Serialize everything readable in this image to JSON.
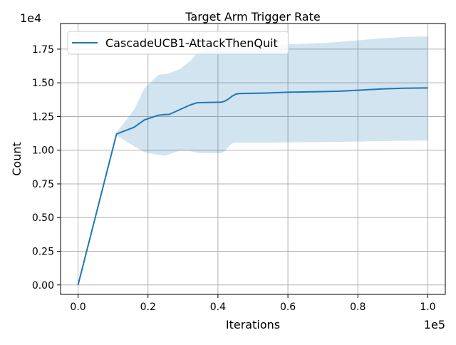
{
  "chart_data": {
    "type": "line",
    "title": "Target Arm Trigger Rate",
    "xlabel": "Iterations",
    "ylabel": "Count",
    "x_multiplier_label": "1e5",
    "y_multiplier_label": "1e4",
    "xlim": [
      -5000,
      105000
    ],
    "ylim": [
      -700,
      19400
    ],
    "xticks": [
      0,
      20000,
      40000,
      60000,
      80000,
      100000
    ],
    "xtick_labels": [
      "0.0",
      "0.2",
      "0.4",
      "0.6",
      "0.8",
      "1.0"
    ],
    "yticks": [
      0,
      2500,
      5000,
      7500,
      10000,
      12500,
      15000,
      17500
    ],
    "ytick_labels": [
      "0.00",
      "0.25",
      "0.50",
      "0.75",
      "1.00",
      "1.25",
      "1.50",
      "1.75"
    ],
    "grid": true,
    "legend": {
      "position": "top-left",
      "entries": [
        "CascadeUCB1-AttackThenQuit"
      ]
    },
    "colors": {
      "line": "#1f77b4",
      "band": "#1f77b4",
      "grid": "#b0b0b0",
      "axis": "#000000"
    },
    "series": [
      {
        "name": "CascadeUCB1-AttackThenQuit",
        "x": [
          0,
          11000,
          16000,
          19000,
          23000,
          25000,
          26000,
          29000,
          32000,
          34000,
          37000,
          41000,
          42000,
          43000,
          44000,
          45000,
          46000,
          50000,
          55000,
          60000,
          70000,
          75000,
          80000,
          87000,
          93000,
          100000
        ],
        "y": [
          0,
          11200,
          11700,
          12250,
          12600,
          12650,
          12650,
          13000,
          13350,
          13520,
          13540,
          13560,
          13650,
          13800,
          14000,
          14150,
          14200,
          14220,
          14250,
          14300,
          14350,
          14380,
          14450,
          14550,
          14600,
          14620
        ],
        "upper": [
          0,
          11300,
          13000,
          14600,
          15600,
          15650,
          15700,
          16000,
          16600,
          17200,
          17600,
          17700,
          17700,
          17700,
          17700,
          17700,
          17700,
          17750,
          17800,
          17850,
          17950,
          18050,
          18150,
          18300,
          18400,
          18450
        ],
        "lower": [
          0,
          11100,
          10300,
          9850,
          9650,
          9600,
          9700,
          9950,
          9950,
          9800,
          9780,
          9780,
          9950,
          10250,
          10500,
          10550,
          10560,
          10560,
          10560,
          10580,
          10600,
          10620,
          10640,
          10680,
          10700,
          10720
        ]
      }
    ]
  }
}
